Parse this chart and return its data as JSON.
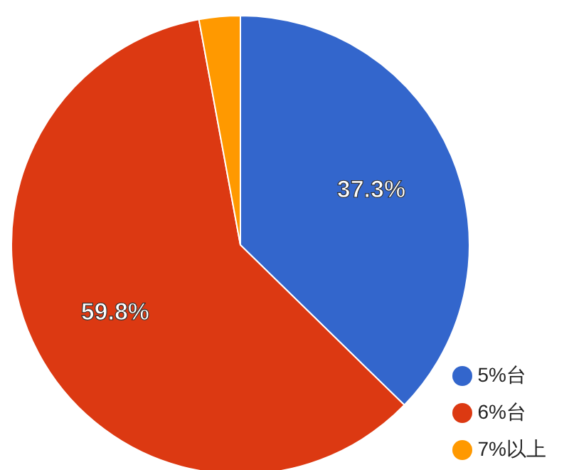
{
  "chart_data": {
    "type": "pie",
    "categories": [
      "5%台",
      "6%台",
      "7%以上"
    ],
    "values": [
      37.3,
      59.8,
      2.9
    ],
    "colors": [
      "#3366cc",
      "#dc3912",
      "#ff9900"
    ],
    "value_labels": [
      "37.3%",
      "59.8%",
      null
    ],
    "legend": "bottom right"
  }
}
